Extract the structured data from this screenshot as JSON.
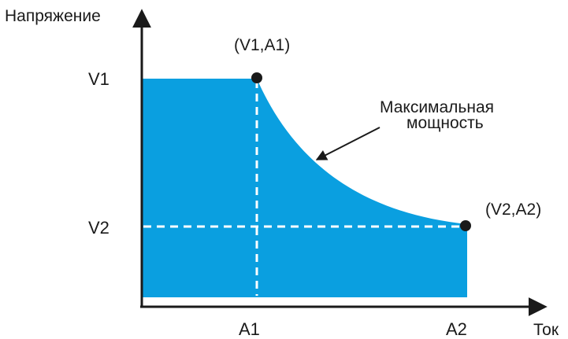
{
  "diagram": {
    "y_axis_label": "Напряжение",
    "x_axis_label": "Ток",
    "y_ticks": {
      "v1": "V1",
      "v2": "V2"
    },
    "x_ticks": {
      "a1": "A1",
      "a2": "A2"
    },
    "points": {
      "p1": "(V1,A1)",
      "p2": "(V2,A2)"
    },
    "annotation": {
      "line1": "Максимальная",
      "line2": "мощность"
    },
    "colors": {
      "fill": "#0A9FE0",
      "axis": "#1a1a1a",
      "guide": "#ffffff",
      "point": "#1a1a1a"
    }
  }
}
